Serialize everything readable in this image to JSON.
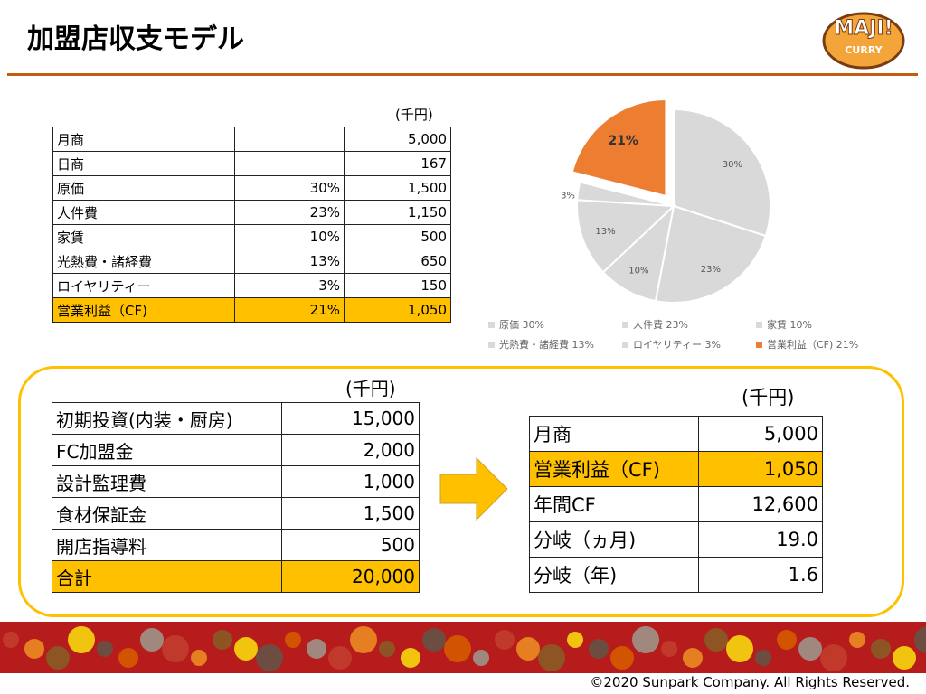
{
  "header": {
    "title": "加盟店収支モデル",
    "logo": {
      "name": "MAJI!",
      "sub": "CURRY"
    }
  },
  "table1": {
    "unit": "(千円)",
    "rows": [
      [
        "月商",
        "",
        "5,000"
      ],
      [
        "日商",
        "",
        "167"
      ],
      [
        "原価",
        "30%",
        "1,500"
      ],
      [
        "人件費",
        "23%",
        "1,150"
      ],
      [
        "家賃",
        "10%",
        "500"
      ],
      [
        "光熱費・諸経費",
        "13%",
        "650"
      ],
      [
        "ロイヤリティー",
        "3%",
        "150"
      ],
      [
        "営業利益（CF)",
        "21%",
        "1,050"
      ]
    ]
  },
  "chart_data": {
    "type": "pie",
    "categories": [
      "原価",
      "人件費",
      "家賃",
      "光熱費・諸経費",
      "ロイヤリティー",
      "営業利益（CF)"
    ],
    "values": [
      30,
      23,
      10,
      13,
      3,
      21
    ],
    "value_labels": [
      "30%",
      "23%",
      "10%",
      "13%",
      "3%",
      "21%"
    ],
    "colors": [
      "#d9d9d9",
      "#d9d9d9",
      "#d9d9d9",
      "#d9d9d9",
      "#d9d9d9",
      "#ed7d31"
    ],
    "legend": [
      "原価 30%",
      "人件費 23%",
      "家賃 10%",
      "光熱費・諸経費 13%",
      "ロイヤリティー 3%",
      "営業利益（CF) 21%"
    ]
  },
  "table2": {
    "unit": "(千円)",
    "rows": [
      [
        "初期投資(内装・厨房)",
        "15,000"
      ],
      [
        "FC加盟金",
        "2,000"
      ],
      [
        "設計監理費",
        "1,000"
      ],
      [
        "食材保証金",
        "1,500"
      ],
      [
        "開店指導料",
        "500"
      ],
      [
        "合計",
        "20,000"
      ]
    ]
  },
  "table3": {
    "unit": "(千円)",
    "rows": [
      [
        "月商",
        "5,000"
      ],
      [
        "営業利益（CF)",
        "1,050"
      ],
      [
        "年間CF",
        "12,600"
      ],
      [
        "分岐（ヵ月)",
        "19.0"
      ],
      [
        "分岐（年)",
        "1.6"
      ]
    ]
  },
  "footer": {
    "copyright": "©2020 Sunpark Company. All Rights Reserved."
  }
}
